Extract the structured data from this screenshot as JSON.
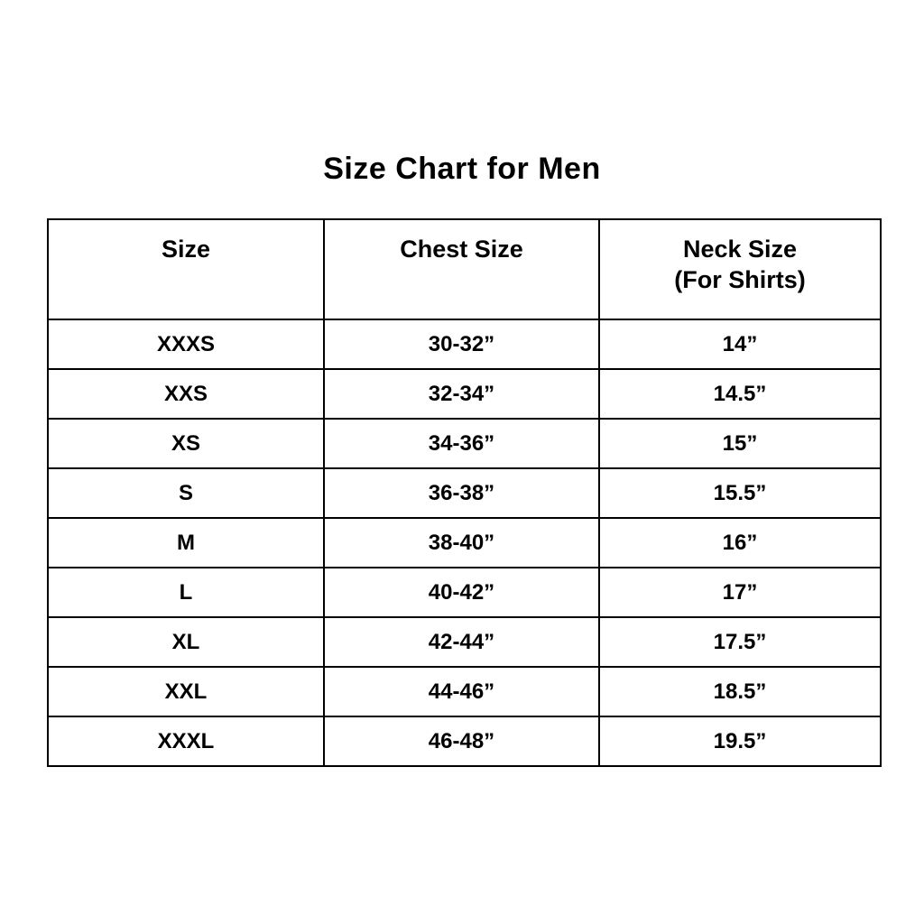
{
  "title": "Size Chart for Men",
  "table": {
    "headers": [
      {
        "label": "Size",
        "sub": ""
      },
      {
        "label": "Chest Size",
        "sub": ""
      },
      {
        "label": "Neck Size",
        "sub": "(For Shirts)"
      }
    ],
    "rows": [
      [
        "XXXS",
        "30-32”",
        "14”"
      ],
      [
        "XXS",
        "32-34”",
        "14.5”"
      ],
      [
        "XS",
        "34-36”",
        "15”"
      ],
      [
        "S",
        "36-38”",
        "15.5”"
      ],
      [
        "M",
        "38-40”",
        "16”"
      ],
      [
        "L",
        "40-42”",
        "17”"
      ],
      [
        "XL",
        "42-44”",
        "17.5”"
      ],
      [
        "XXL",
        "44-46”",
        "18.5”"
      ],
      [
        "XXXL",
        "46-48”",
        "19.5”"
      ]
    ]
  },
  "colors": {
    "background": "#ffffff",
    "text": "#000000",
    "border": "#000000"
  },
  "chart_data": {
    "type": "table",
    "title": "Size Chart for Men",
    "columns": [
      "Size",
      "Chest Size",
      "Neck Size (For Shirts)"
    ],
    "rows": [
      [
        "XXXS",
        "30-32”",
        "14”"
      ],
      [
        "XXS",
        "32-34”",
        "14.5”"
      ],
      [
        "XS",
        "34-36”",
        "15”"
      ],
      [
        "S",
        "36-38”",
        "15.5”"
      ],
      [
        "M",
        "38-40”",
        "16”"
      ],
      [
        "L",
        "40-42”",
        "17”"
      ],
      [
        "XL",
        "42-44”",
        "17.5”"
      ],
      [
        "XXL",
        "44-46”",
        "18.5”"
      ],
      [
        "XXXL",
        "46-48”",
        "19.5”"
      ]
    ],
    "layout": {
      "grid": true,
      "header_row": true,
      "text_align": "center"
    }
  }
}
